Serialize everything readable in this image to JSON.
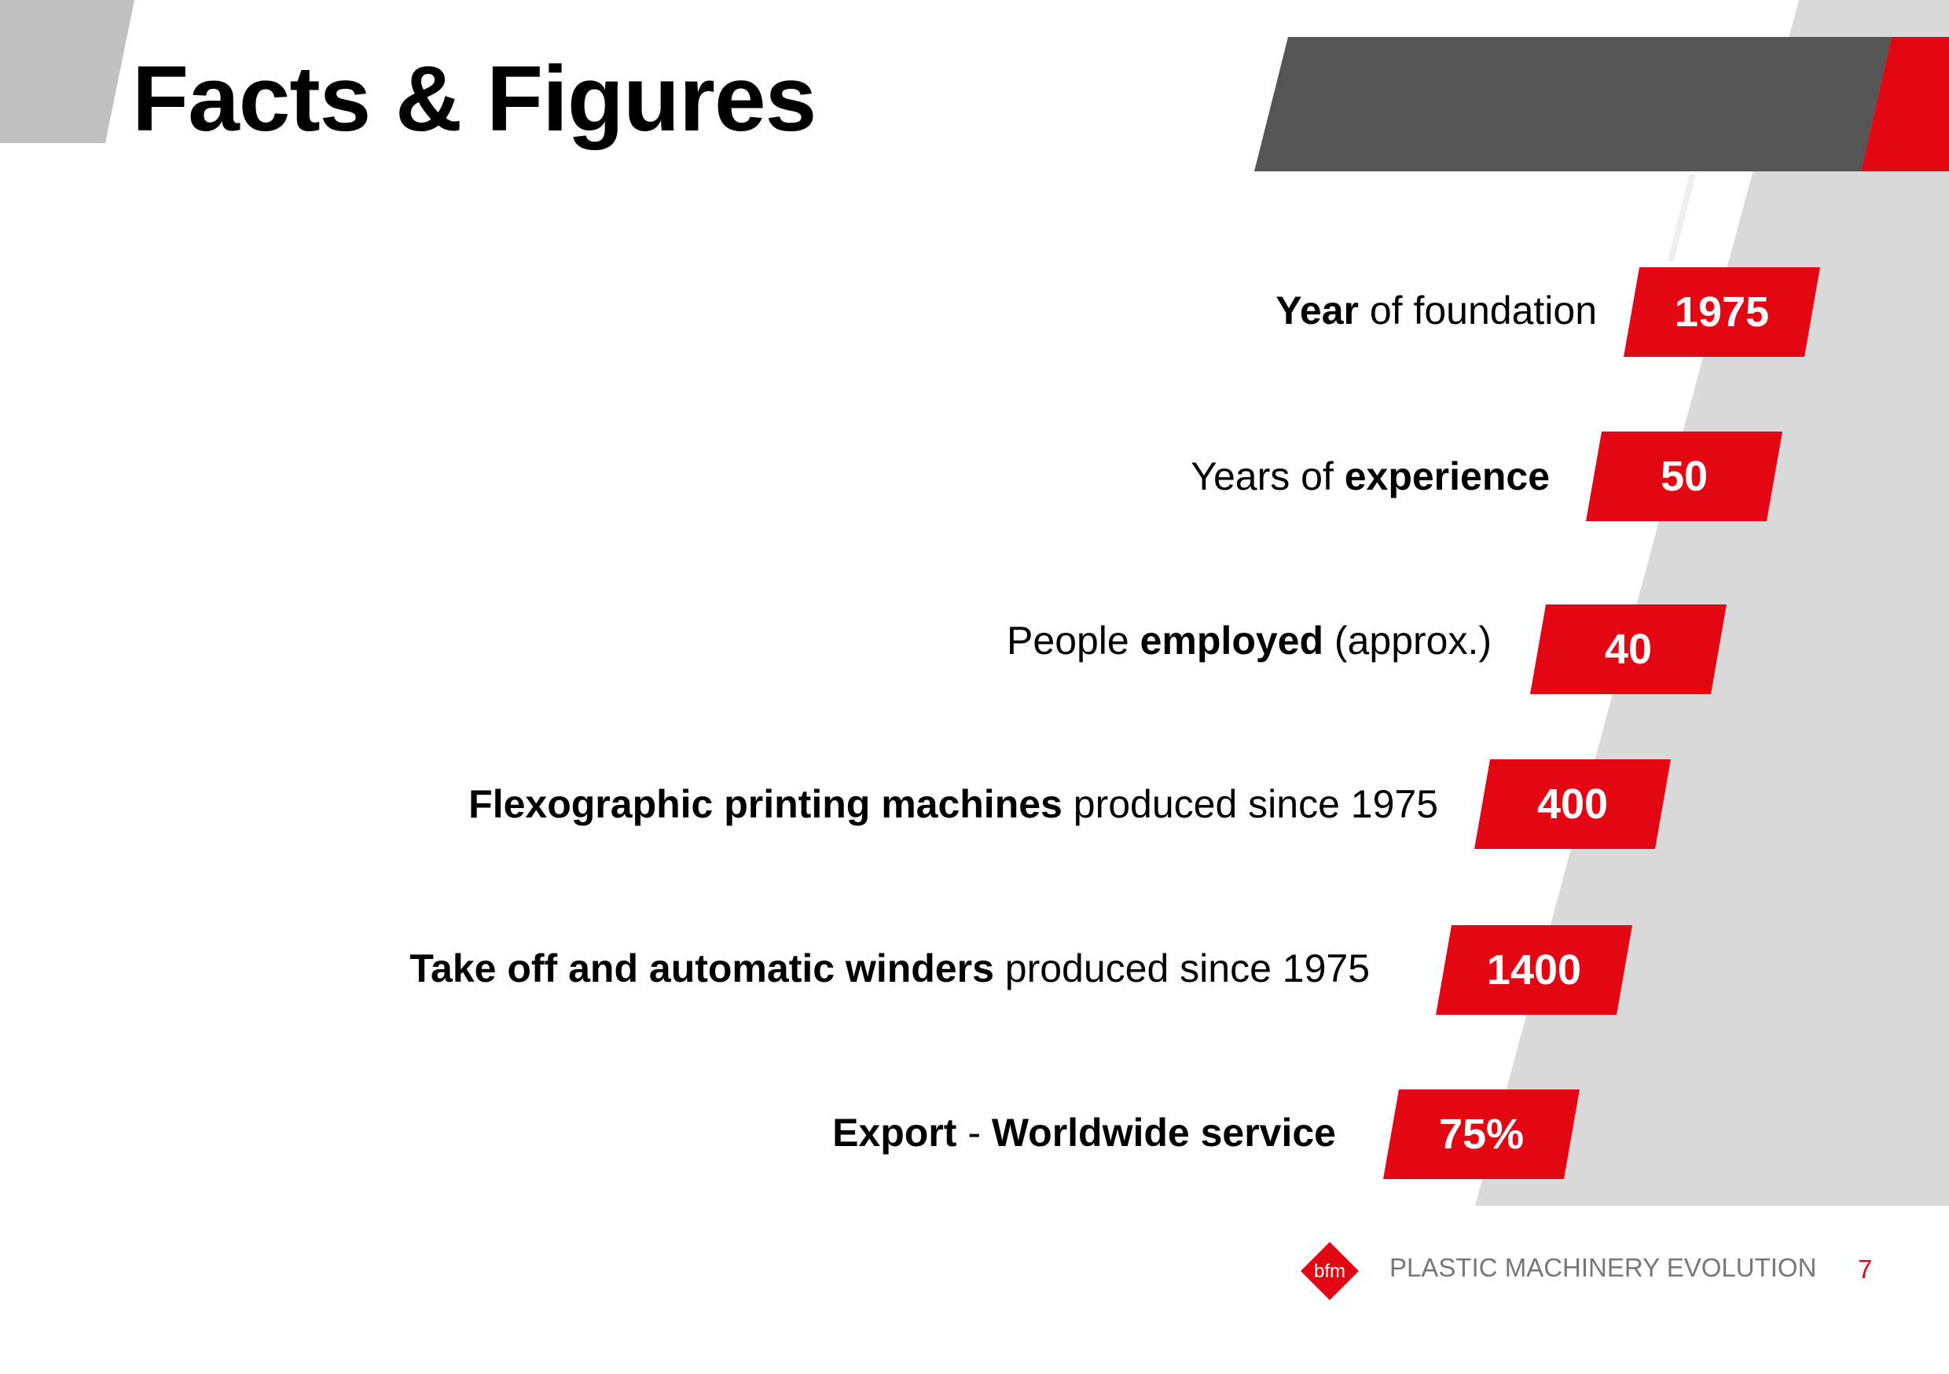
{
  "title": "Facts & Figures",
  "colors": {
    "accent": "#e30613",
    "dark_bar": "#555555",
    "light_grey": "#d9d9d9",
    "corner_grey": "#c0c0c0"
  },
  "facts": [
    {
      "segments": [
        {
          "text": "Year",
          "bold": true
        },
        {
          "text": " of foundation",
          "bold": false
        }
      ],
      "value": "1975"
    },
    {
      "segments": [
        {
          "text": "Years of ",
          "bold": false
        },
        {
          "text": "experience",
          "bold": true
        }
      ],
      "value": "50"
    },
    {
      "segments": [
        {
          "text": "People ",
          "bold": false
        },
        {
          "text": "employed",
          "bold": true
        },
        {
          "text": " (approx.)",
          "bold": false
        }
      ],
      "value": "40"
    },
    {
      "segments": [
        {
          "text": "Flexographic printing machines",
          "bold": true
        },
        {
          "text": " produced since 1975",
          "bold": false
        }
      ],
      "value": "400"
    },
    {
      "segments": [
        {
          "text": "Take off and automatic winders",
          "bold": true
        },
        {
          "text": " produced since 1975",
          "bold": false
        }
      ],
      "value": "1400"
    },
    {
      "segments": [
        {
          "text": "Export",
          "bold": true
        },
        {
          "text": " - ",
          "bold": false
        },
        {
          "text": "Worldwide service",
          "bold": true
        }
      ],
      "value": "75%"
    }
  ],
  "footer": {
    "logo_text": "bfm",
    "tagline": "PLASTIC MACHINERY EVOLUTION",
    "page_number": "7"
  }
}
